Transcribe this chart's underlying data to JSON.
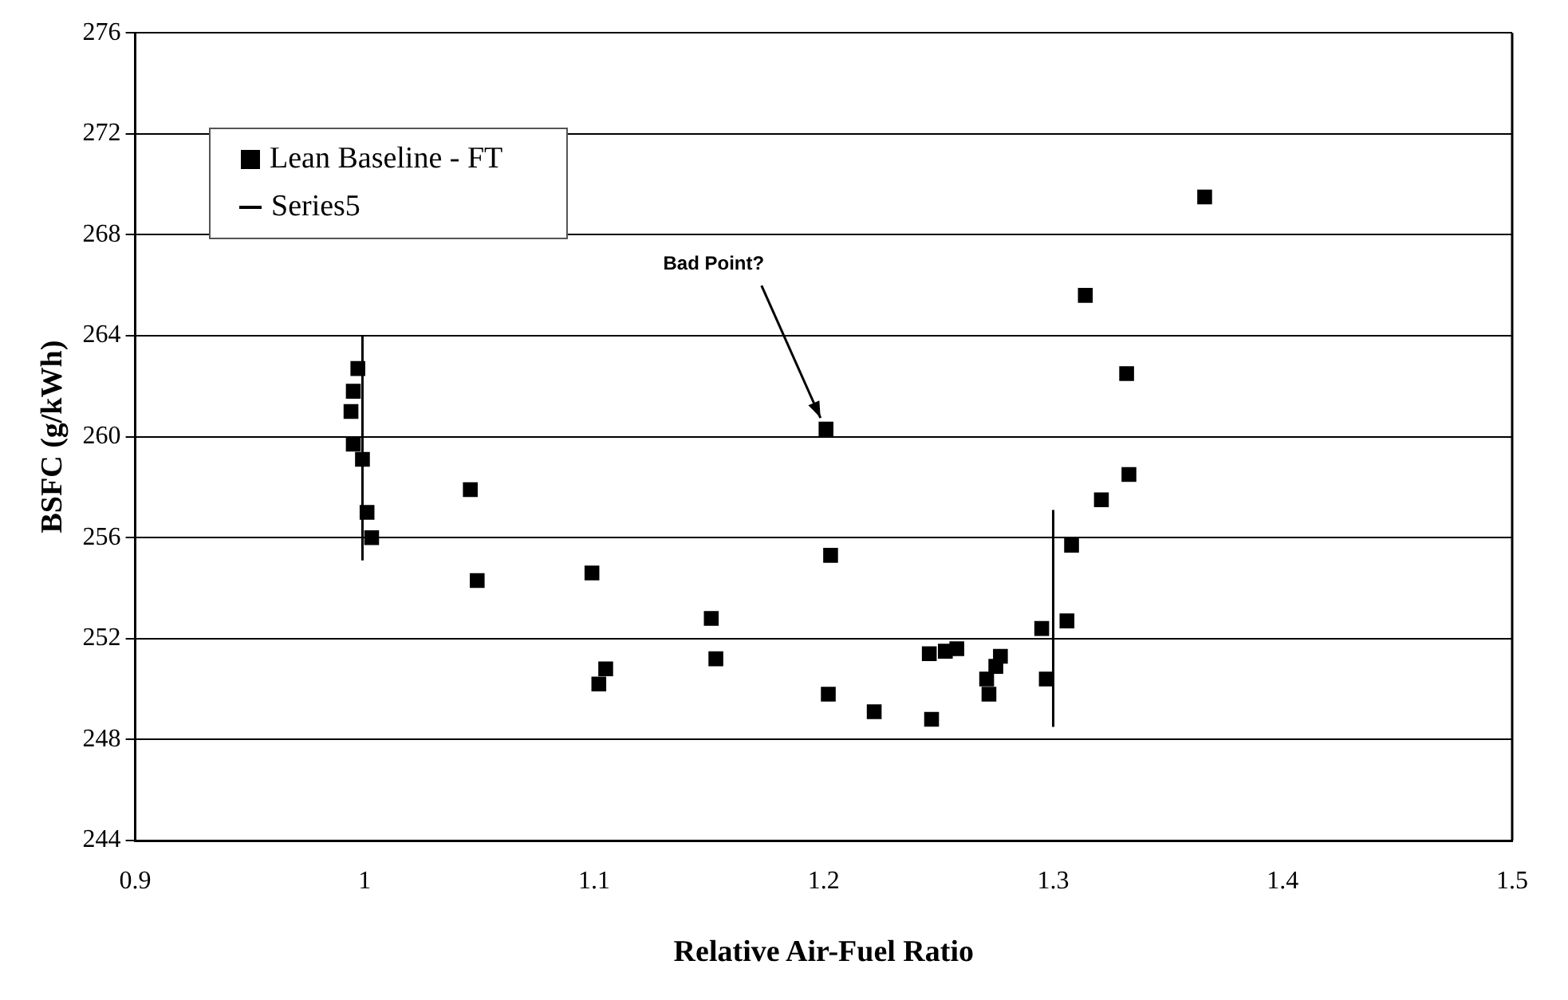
{
  "chart_data": {
    "type": "scatter",
    "xlabel": "Relative Air-Fuel Ratio",
    "ylabel": "BSFC (g/kWh)",
    "xlim": [
      0.9,
      1.5
    ],
    "xticks": [
      0.9,
      1,
      1.1,
      1.2,
      1.3,
      1.4,
      1.5
    ],
    "ylim": [
      244,
      276
    ],
    "yticks": [
      244,
      248,
      252,
      256,
      260,
      264,
      268,
      272,
      276
    ],
    "grid": "y",
    "legend": "top left",
    "marker": "square",
    "annotations": [
      {
        "text": "Bad Point?",
        "x": 1.2007,
        "y": 260.3
      }
    ],
    "series": [
      {
        "name": "Lean Baseline - FT",
        "color": "#000000",
        "x": [
          0.997,
          0.995,
          0.994,
          0.995,
          0.999,
          1.001,
          1.003,
          1.046,
          1.049,
          1.099,
          1.105,
          1.102,
          1.151,
          1.153,
          1.201,
          1.203,
          1.202,
          1.222,
          1.247,
          1.246,
          1.253,
          1.258,
          1.271,
          1.272,
          1.275,
          1.277,
          1.295,
          1.297,
          1.306,
          1.308,
          1.321,
          1.333,
          1.332,
          1.314,
          1.366
        ],
        "values": [
          262.7,
          261.8,
          261.0,
          259.7,
          259.1,
          257.0,
          256.0,
          257.9,
          254.3,
          254.6,
          250.8,
          250.2,
          252.8,
          251.2,
          260.3,
          255.3,
          249.8,
          249.1,
          248.8,
          251.4,
          251.5,
          251.6,
          250.4,
          249.8,
          250.9,
          251.3,
          252.4,
          250.4,
          252.7,
          255.7,
          257.5,
          258.5,
          262.5,
          265.6,
          269.5
        ]
      },
      {
        "name": "Series5",
        "type": "line",
        "color": "#000000",
        "marker": "none",
        "x": [
          0.999,
          0.999,
          1.2995,
          1.3,
          1.3
        ],
        "values": [
          255.1,
          264.0,
          null,
          248.5,
          257.1
        ]
      }
    ]
  }
}
